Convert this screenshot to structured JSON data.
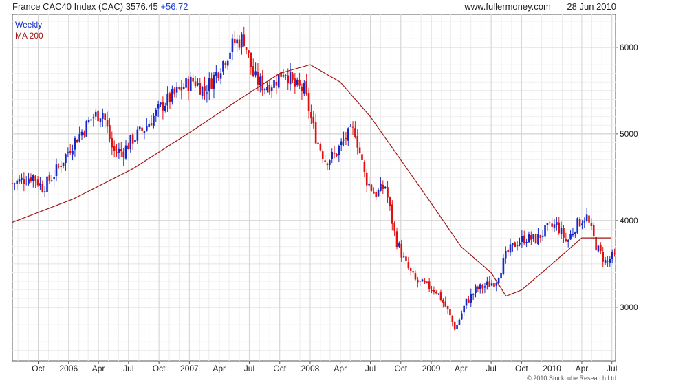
{
  "header": {
    "index_name": "France CAC40 Index (CAC)",
    "last_value": "3576.45",
    "change": "+56.72",
    "site": "www.fullermoney.com",
    "date": "28 Jun 2010"
  },
  "footer": {
    "copyright": "© 2010 Stockcube Research Ltd"
  },
  "colors": {
    "up": "#1428c8",
    "down": "#e01010",
    "ma": "#a01818",
    "grid": "#d0d0d0"
  },
  "chart_data": {
    "type": "line",
    "chart_subtype": "weekly candlestick with moving average",
    "legend": [
      "Weekly",
      "MA 200"
    ],
    "legend_placement": "top-left",
    "grid": true,
    "y_axis_side": "right",
    "ylim": [
      2380,
      6380
    ],
    "y_ticks": [
      3000,
      4000,
      5000,
      6000
    ],
    "x_ticks": [
      "Oct",
      "2006",
      "Apr",
      "Jul",
      "Oct",
      "2007",
      "Apr",
      "Jul",
      "Oct",
      "2008",
      "Apr",
      "Jul",
      "Oct",
      "2009",
      "Apr",
      "Jul",
      "Oct",
      "2010",
      "Apr",
      "Jul"
    ],
    "x_tick_dates": [
      "2005-10-01",
      "2006-01-01",
      "2006-04-01",
      "2006-07-01",
      "2006-10-01",
      "2007-01-01",
      "2007-04-01",
      "2007-07-01",
      "2007-10-01",
      "2008-01-01",
      "2008-04-01",
      "2008-07-01",
      "2008-10-01",
      "2009-01-01",
      "2009-04-01",
      "2009-07-01",
      "2009-10-01",
      "2010-01-01",
      "2010-04-01",
      "2010-07-01"
    ],
    "x_range": [
      "2005-07-15",
      "2010-07-12"
    ],
    "price_series": {
      "name": "Weekly",
      "dates": [
        "2005-07-15",
        "2005-08-15",
        "2005-09-15",
        "2005-10-15",
        "2005-11-15",
        "2005-12-15",
        "2006-01-15",
        "2006-02-15",
        "2006-03-15",
        "2006-04-15",
        "2006-05-15",
        "2006-06-15",
        "2006-07-15",
        "2006-08-15",
        "2006-09-15",
        "2006-10-15",
        "2006-11-15",
        "2006-12-15",
        "2007-01-15",
        "2007-02-15",
        "2007-03-15",
        "2007-04-15",
        "2007-05-15",
        "2007-06-15",
        "2007-07-15",
        "2007-08-15",
        "2007-09-15",
        "2007-10-15",
        "2007-11-15",
        "2007-12-15",
        "2008-01-15",
        "2008-02-15",
        "2008-03-15",
        "2008-04-15",
        "2008-05-15",
        "2008-06-15",
        "2008-07-15",
        "2008-08-15",
        "2008-09-15",
        "2008-10-15",
        "2008-11-15",
        "2008-12-15",
        "2009-01-15",
        "2009-02-15",
        "2009-03-15",
        "2009-04-15",
        "2009-05-15",
        "2009-06-15",
        "2009-07-15",
        "2009-08-15",
        "2009-09-15",
        "2009-10-15",
        "2009-11-15",
        "2009-12-15",
        "2010-01-15",
        "2010-02-15",
        "2010-03-15",
        "2010-04-15",
        "2010-05-15",
        "2010-06-15",
        "2010-06-28"
      ],
      "values": [
        4430,
        4470,
        4520,
        4380,
        4520,
        4700,
        4900,
        5050,
        5200,
        5250,
        4800,
        4800,
        4950,
        5050,
        5200,
        5350,
        5450,
        5550,
        5620,
        5500,
        5650,
        5850,
        6050,
        6100,
        5650,
        5550,
        5600,
        5750,
        5550,
        5500,
        5000,
        4700,
        4750,
        4950,
        5050,
        4500,
        4300,
        4400,
        3800,
        3500,
        3300,
        3250,
        3200,
        3000,
        2750,
        3050,
        3200,
        3250,
        3300,
        3600,
        3750,
        3800,
        3780,
        3900,
        3950,
        3750,
        3950,
        4050,
        3700,
        3500,
        3576
      ]
    },
    "ma_series": {
      "name": "MA 200",
      "dates": [
        "2005-07-15",
        "2006-01-15",
        "2006-07-15",
        "2007-01-15",
        "2007-06-01",
        "2007-10-01",
        "2008-01-01",
        "2008-04-01",
        "2008-07-01",
        "2008-10-01",
        "2009-01-01",
        "2009-04-01",
        "2009-07-01",
        "2009-08-15",
        "2009-10-01",
        "2010-01-01",
        "2010-04-01",
        "2010-06-28"
      ],
      "values": [
        3980,
        4250,
        4600,
        5050,
        5400,
        5700,
        5800,
        5600,
        5200,
        4700,
        4200,
        3700,
        3400,
        3130,
        3200,
        3500,
        3800,
        3800
      ]
    }
  }
}
